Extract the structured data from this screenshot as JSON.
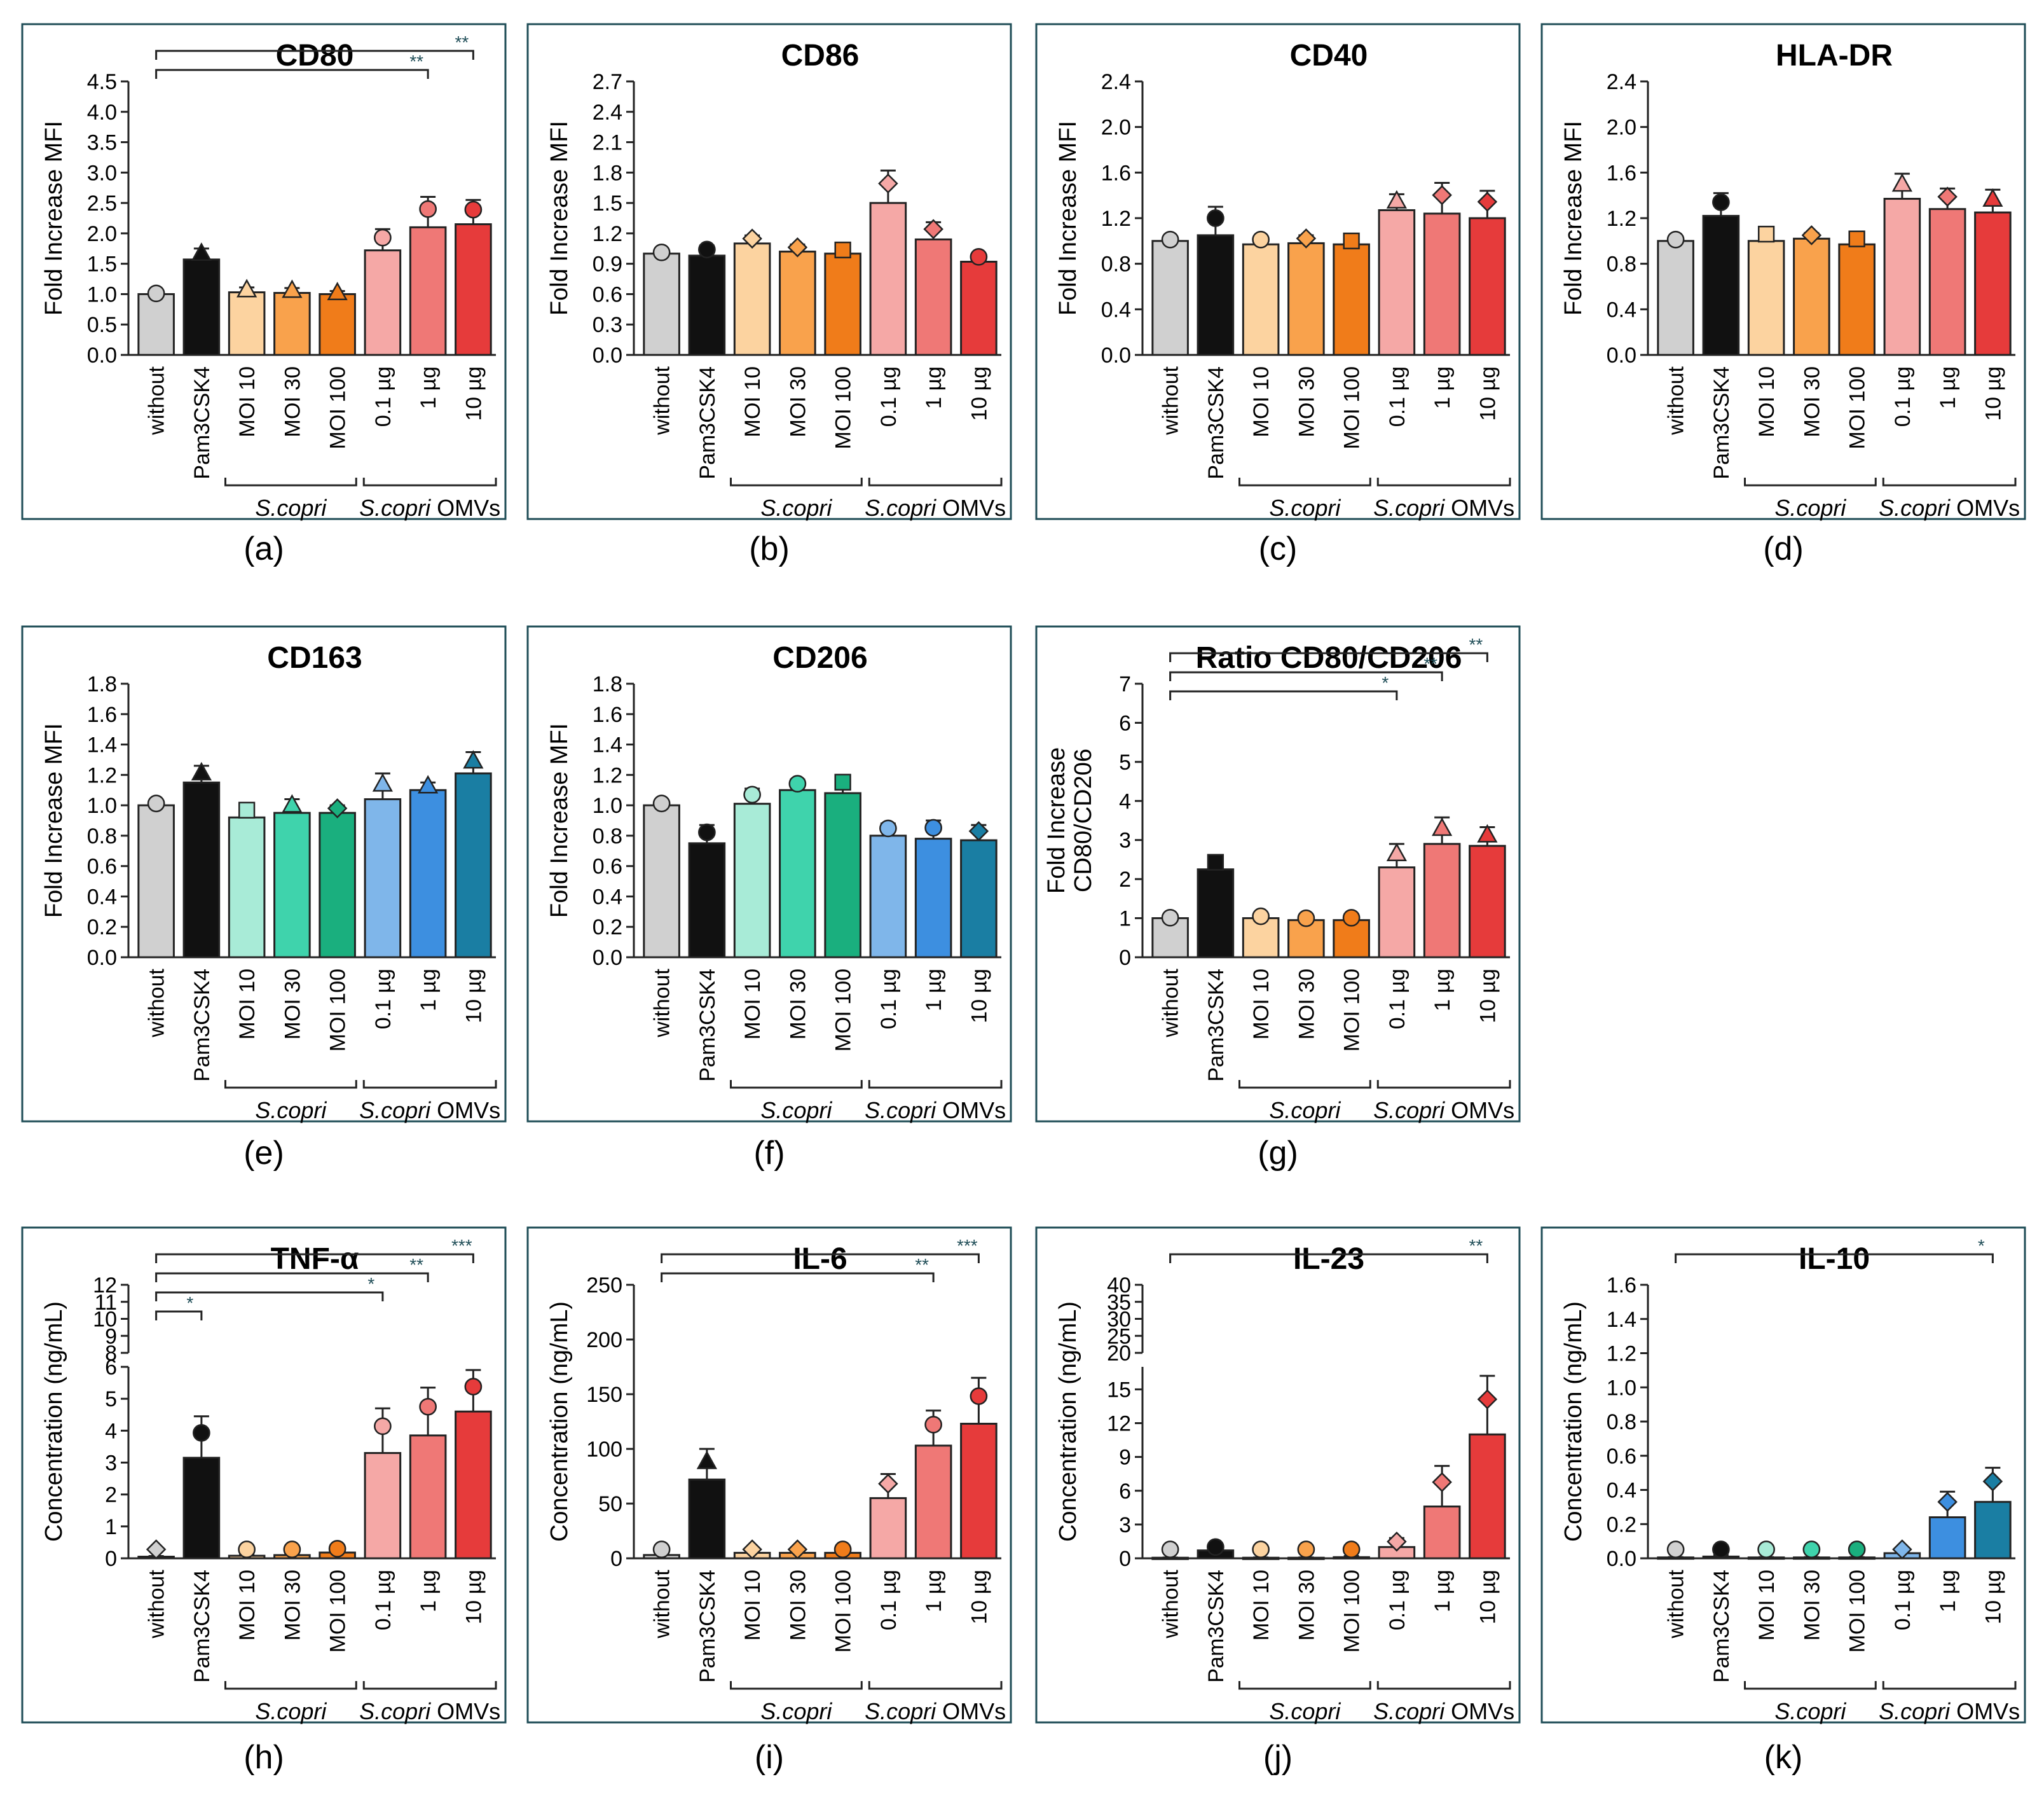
{
  "chart_data": [
    {
      "id": "a",
      "type": "bar",
      "panel_label": "(a)",
      "title": "CD80",
      "ylabel": "Fold Increase MFI",
      "categories": [
        "without",
        "Pam3CSK4",
        "MOI 10",
        "MOI 30",
        "MOI 100",
        "0.1 µg",
        "1 µg",
        "10 µg"
      ],
      "values": [
        1.0,
        1.57,
        1.03,
        1.02,
        1.0,
        1.72,
        2.1,
        2.15
      ],
      "errors": [
        0.02,
        0.18,
        0.08,
        0.08,
        0.05,
        0.35,
        0.5,
        0.4
      ],
      "ylim": [
        0,
        4.5
      ],
      "ticks": [
        "0.0",
        "0.5",
        "1.0",
        "1.5",
        "2.0",
        "2.5",
        "3.0",
        "3.5",
        "4.0",
        "4.5"
      ],
      "colors": [
        "#d0d0d0",
        "#111111",
        "#fcd3a0",
        "#f9a24c",
        "#f07c1a",
        "#f5a8a6",
        "#ef7876",
        "#e63b3b"
      ],
      "markers": [
        "circle",
        "triangle",
        "triangle",
        "triangle",
        "triangle",
        "circle",
        "circle",
        "circle"
      ],
      "brackets": [
        {
          "from": "without",
          "to": "10 µg",
          "stars": "**"
        },
        {
          "from": "without",
          "to": "1 µg",
          "stars": "**"
        }
      ],
      "group_labels": {
        "left": "S.copri",
        "right_italic": "S.copri",
        "right_suffix": " OMVs"
      }
    },
    {
      "id": "b",
      "type": "bar",
      "panel_label": "(b)",
      "title": "CD86",
      "ylabel": "Fold Increase MFI",
      "categories": [
        "without",
        "Pam3CSK4",
        "MOI 10",
        "MOI 30",
        "MOI 100",
        "0.1 µg",
        "1 µg",
        "10 µg"
      ],
      "values": [
        1.0,
        0.98,
        1.1,
        1.02,
        1.0,
        1.5,
        1.14,
        0.92
      ],
      "errors": [
        0.02,
        0.1,
        0.08,
        0.07,
        0.06,
        0.32,
        0.17,
        0.08
      ],
      "ylim": [
        0,
        2.7
      ],
      "ticks": [
        "0.0",
        "0.3",
        "0.6",
        "0.9",
        "1.2",
        "1.5",
        "1.8",
        "2.1",
        "2.4",
        "2.7"
      ],
      "colors": [
        "#d0d0d0",
        "#111111",
        "#fcd3a0",
        "#f9a24c",
        "#f07c1a",
        "#f5a8a6",
        "#ef7876",
        "#e63b3b"
      ],
      "markers": [
        "circle",
        "circle",
        "diamond",
        "diamond",
        "square",
        "diamond",
        "diamond",
        "circle"
      ],
      "brackets": [],
      "group_labels": {
        "left": "S.copri",
        "right_italic": "S.copri",
        "right_suffix": " OMVs"
      }
    },
    {
      "id": "c",
      "type": "bar",
      "panel_label": "(c)",
      "title": "CD40",
      "ylabel": "Fold Increase MFI",
      "categories": [
        "without",
        "Pam3CSK4",
        "MOI 10",
        "MOI 30",
        "MOI 100",
        "0.1 µg",
        "1 µg",
        "10 µg"
      ],
      "values": [
        1.0,
        1.05,
        0.97,
        0.98,
        0.97,
        1.27,
        1.24,
        1.2
      ],
      "errors": [
        0.02,
        0.25,
        0.07,
        0.07,
        0.05,
        0.14,
        0.27,
        0.24
      ],
      "ylim": [
        0,
        2.4
      ],
      "ticks": [
        "0.0",
        "0.4",
        "0.8",
        "1.2",
        "1.6",
        "2.0",
        "2.4"
      ],
      "colors": [
        "#d0d0d0",
        "#111111",
        "#fcd3a0",
        "#f9a24c",
        "#f07c1a",
        "#f5a8a6",
        "#ef7876",
        "#e63b3b"
      ],
      "markers": [
        "circle",
        "circle",
        "circle",
        "diamond",
        "square",
        "triangle",
        "diamond",
        "diamond"
      ],
      "brackets": [],
      "group_labels": {
        "left": "S.copri",
        "right_italic": "S.copri",
        "right_suffix": " OMVs"
      }
    },
    {
      "id": "d",
      "type": "bar",
      "panel_label": "(d)",
      "title": "HLA-DR",
      "ylabel": "Fold Increase MFI",
      "categories": [
        "without",
        "Pam3CSK4",
        "MOI 10",
        "MOI 30",
        "MOI 100",
        "0.1 µg",
        "1 µg",
        "10 µg"
      ],
      "values": [
        1.0,
        1.22,
        1.0,
        1.02,
        0.97,
        1.37,
        1.28,
        1.25
      ],
      "errors": [
        0.02,
        0.2,
        0.1,
        0.05,
        0.08,
        0.22,
        0.18,
        0.2
      ],
      "ylim": [
        0,
        2.4
      ],
      "ticks": [
        "0.0",
        "0.4",
        "0.8",
        "1.2",
        "1.6",
        "2.0",
        "2.4"
      ],
      "colors": [
        "#d0d0d0",
        "#111111",
        "#fcd3a0",
        "#f9a24c",
        "#f07c1a",
        "#f5a8a6",
        "#ef7876",
        "#e63b3b"
      ],
      "markers": [
        "circle",
        "circle",
        "square",
        "diamond",
        "square",
        "triangle",
        "diamond",
        "triangle"
      ],
      "brackets": [],
      "group_labels": {
        "left": "S.copri",
        "right_italic": "S.copri",
        "right_suffix": " OMVs"
      }
    },
    {
      "id": "e",
      "type": "bar",
      "panel_label": "(e)",
      "title": "CD163",
      "ylabel": "Fold Increase MFI",
      "categories": [
        "without",
        "Pam3CSK4",
        "MOI 10",
        "MOI 30",
        "MOI 100",
        "0.1 µg",
        "1 µg",
        "10 µg"
      ],
      "values": [
        1.0,
        1.15,
        0.92,
        0.95,
        0.95,
        1.04,
        1.1,
        1.21
      ],
      "errors": [
        0.02,
        0.11,
        0.08,
        0.09,
        0.05,
        0.17,
        0.05,
        0.14
      ],
      "ylim": [
        0,
        1.8
      ],
      "ticks": [
        "0.0",
        "0.2",
        "0.4",
        "0.6",
        "0.8",
        "1.0",
        "1.2",
        "1.4",
        "1.6",
        "1.8"
      ],
      "colors": [
        "#d0d0d0",
        "#111111",
        "#a8ebd7",
        "#3fd3ac",
        "#1aaf7e",
        "#7fb6ea",
        "#3d8fe0",
        "#1a7ea3"
      ],
      "markers": [
        "circle",
        "triangle",
        "square",
        "triangle",
        "diamond",
        "triangle",
        "triangle",
        "triangle"
      ],
      "brackets": [],
      "group_labels": {
        "left": "S.copri",
        "right_italic": "S.copri",
        "right_suffix": " OMVs"
      }
    },
    {
      "id": "f",
      "type": "bar",
      "panel_label": "(f)",
      "title": "CD206",
      "ylabel": "Fold Increase MFI",
      "categories": [
        "without",
        "Pam3CSK4",
        "MOI 10",
        "MOI 30",
        "MOI 100",
        "0.1 µg",
        "1 µg",
        "10 µg"
      ],
      "values": [
        1.0,
        0.75,
        1.01,
        1.1,
        1.08,
        0.8,
        0.78,
        0.77
      ],
      "errors": [
        0.02,
        0.12,
        0.1,
        0.07,
        0.12,
        0.08,
        0.12,
        0.1
      ],
      "ylim": [
        0,
        1.8
      ],
      "ticks": [
        "0.0",
        "0.2",
        "0.4",
        "0.6",
        "0.8",
        "1.0",
        "1.2",
        "1.4",
        "1.6",
        "1.8"
      ],
      "colors": [
        "#d0d0d0",
        "#111111",
        "#a8ebd7",
        "#3fd3ac",
        "#1aaf7e",
        "#7fb6ea",
        "#3d8fe0",
        "#1a7ea3"
      ],
      "markers": [
        "circle",
        "circle",
        "circle",
        "circle",
        "square",
        "circle",
        "circle",
        "diamond"
      ],
      "brackets": [],
      "group_labels": {
        "left": "S.copri",
        "right_italic": "S.copri",
        "right_suffix": " OMVs"
      }
    },
    {
      "id": "g",
      "type": "bar",
      "panel_label": "(g)",
      "title": "Ratio CD80/CD206",
      "ylabel": "Fold Increase",
      "ylabel2": "CD80/CD206",
      "categories": [
        "without",
        "Pam3CSK4",
        "MOI 10",
        "MOI 30",
        "MOI 100",
        "0.1 µg",
        "1 µg",
        "10 µg"
      ],
      "values": [
        1.0,
        2.25,
        1.0,
        0.95,
        0.95,
        2.3,
        2.9,
        2.85
      ],
      "errors": [
        0.02,
        0.3,
        0.08,
        0.08,
        0.1,
        0.6,
        0.68,
        0.48
      ],
      "ylim": [
        0,
        7
      ],
      "ticks": [
        "0",
        "1",
        "2",
        "3",
        "4",
        "5",
        "6",
        "7"
      ],
      "colors": [
        "#d0d0d0",
        "#111111",
        "#fcd3a0",
        "#f9a24c",
        "#f07c1a",
        "#f5a8a6",
        "#ef7876",
        "#e63b3b"
      ],
      "markers": [
        "circle",
        "square",
        "circle",
        "circle",
        "circle",
        "triangle",
        "triangle",
        "triangle"
      ],
      "brackets": [
        {
          "from": "without",
          "to": "10 µg",
          "stars": "**"
        },
        {
          "from": "without",
          "to": "1 µg",
          "stars": "**"
        },
        {
          "from": "without",
          "to": "0.1 µg",
          "stars": "*"
        }
      ],
      "group_labels": {
        "left": "S.copri",
        "right_italic": "S.copri",
        "right_suffix": " OMVs"
      }
    },
    {
      "id": "h",
      "type": "bar",
      "panel_label": "(h)",
      "title": "TNF-α",
      "ylabel": "Concentration (ng/mL)",
      "categories": [
        "without",
        "Pam3CSK4",
        "MOI 10",
        "MOI 30",
        "MOI 100",
        "0.1 µg",
        "1 µg",
        "10 µg"
      ],
      "values": [
        0.05,
        3.15,
        0.08,
        0.1,
        0.18,
        3.3,
        3.85,
        4.6
      ],
      "errors": [
        0.02,
        1.3,
        0.05,
        0.05,
        0.2,
        1.4,
        1.5,
        1.3
      ],
      "ylim": [
        0,
        12
      ],
      "ticks": [
        "0",
        "1",
        "2",
        "3",
        "4",
        "5",
        "6",
        "8",
        "9",
        "10",
        "11",
        "12"
      ],
      "axis_break": {
        "lower_max": 6,
        "upper_min": 8
      },
      "colors": [
        "#d0d0d0",
        "#111111",
        "#fcd3a0",
        "#f9a24c",
        "#f07c1a",
        "#f5a8a6",
        "#ef7876",
        "#e63b3b"
      ],
      "markers": [
        "diamond",
        "circle",
        "circle",
        "circle",
        "circle",
        "circle",
        "circle",
        "circle"
      ],
      "brackets": [
        {
          "from": "without",
          "to": "10 µg",
          "stars": "***"
        },
        {
          "from": "without",
          "to": "1 µg",
          "stars": "**"
        },
        {
          "from": "without",
          "to": "0.1 µg",
          "stars": "*"
        },
        {
          "from": "without",
          "to": "Pam3CSK4",
          "stars": "*"
        }
      ],
      "group_labels": {
        "left": "S.copri",
        "right_italic": "S.copri",
        "right_suffix": " OMVs"
      }
    },
    {
      "id": "i",
      "type": "bar",
      "panel_label": "(i)",
      "title": "IL-6",
      "ylabel": "Concentration (ng/mL)",
      "categories": [
        "without",
        "Pam3CSK4",
        "MOI 10",
        "MOI 30",
        "MOI 100",
        "0.1 µg",
        "1 µg",
        "10 µg"
      ],
      "values": [
        3,
        72,
        5,
        5,
        5,
        55,
        103,
        123
      ],
      "errors": [
        1,
        28,
        3,
        3,
        3,
        22,
        32,
        42
      ],
      "ylim": [
        0,
        250
      ],
      "ticks": [
        "0",
        "50",
        "100",
        "150",
        "200",
        "250"
      ],
      "colors": [
        "#d0d0d0",
        "#111111",
        "#fcd3a0",
        "#f9a24c",
        "#f07c1a",
        "#f5a8a6",
        "#ef7876",
        "#e63b3b"
      ],
      "markers": [
        "circle",
        "triangle",
        "diamond",
        "diamond",
        "circle",
        "diamond",
        "circle",
        "circle"
      ],
      "brackets": [
        {
          "from": "without",
          "to": "10 µg",
          "stars": "***"
        },
        {
          "from": "without",
          "to": "1 µg",
          "stars": "**"
        }
      ],
      "group_labels": {
        "left": "S.copri",
        "right_italic": "S.copri",
        "right_suffix": " OMVs"
      }
    },
    {
      "id": "j",
      "type": "bar",
      "panel_label": "(j)",
      "title": "IL-23",
      "ylabel": "Concentration (ng/mL)",
      "categories": [
        "without",
        "Pam3CSK4",
        "MOI 10",
        "MOI 30",
        "MOI 100",
        "0.1 µg",
        "1 µg",
        "10 µg"
      ],
      "values": [
        0.05,
        0.7,
        0.05,
        0.05,
        0.1,
        1.0,
        4.6,
        11.0
      ],
      "errors": [
        0.02,
        0.5,
        0.03,
        0.03,
        0.1,
        0.8,
        3.6,
        5.2
      ],
      "ylim": [
        0,
        40
      ],
      "ticks": [
        "0",
        "3",
        "6",
        "9",
        "12",
        "15",
        "20",
        "25",
        "30",
        "35",
        "40"
      ],
      "axis_break": {
        "lower_max": 17,
        "upper_min": 20
      },
      "colors": [
        "#d0d0d0",
        "#111111",
        "#fcd3a0",
        "#f9a24c",
        "#f07c1a",
        "#f5a8a6",
        "#ef7876",
        "#e63b3b"
      ],
      "markers": [
        "circle",
        "circle",
        "circle",
        "circle",
        "circle",
        "diamond",
        "diamond",
        "diamond"
      ],
      "brackets": [
        {
          "from": "without",
          "to": "10 µg",
          "stars": "**"
        }
      ],
      "group_labels": {
        "left": "S.copri",
        "right_italic": "S.copri",
        "right_suffix": " OMVs"
      }
    },
    {
      "id": "k",
      "type": "bar",
      "panel_label": "(k)",
      "title": "IL-10",
      "ylabel": "Concentration (ng/mL)",
      "categories": [
        "without",
        "Pam3CSK4",
        "MOI 10",
        "MOI 30",
        "MOI 100",
        "0.1 µg",
        "1 µg",
        "10 µg"
      ],
      "values": [
        0.005,
        0.01,
        0.005,
        0.005,
        0.005,
        0.03,
        0.24,
        0.33
      ],
      "errors": [
        0.002,
        0.01,
        0.002,
        0.002,
        0.002,
        0.03,
        0.15,
        0.2
      ],
      "ylim": [
        0,
        1.6
      ],
      "ticks": [
        "0.0",
        "0.2",
        "0.4",
        "0.6",
        "0.8",
        "1.0",
        "1.2",
        "1.4",
        "1.6"
      ],
      "colors": [
        "#d0d0d0",
        "#111111",
        "#a8ebd7",
        "#3fd3ac",
        "#1aaf7e",
        "#7fb6ea",
        "#3d8fe0",
        "#1a7ea3"
      ],
      "markers": [
        "circle",
        "circle",
        "circle",
        "circle",
        "circle",
        "diamond",
        "diamond",
        "diamond"
      ],
      "brackets": [
        {
          "from": "without",
          "to": "10 µg",
          "stars": "*"
        }
      ],
      "group_labels": {
        "left": "S.copri",
        "right_italic": "S.copri",
        "right_suffix": " OMVs"
      }
    }
  ]
}
